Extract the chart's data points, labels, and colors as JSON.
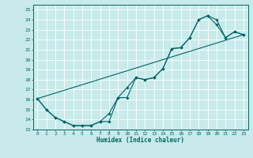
{
  "title": "",
  "xlabel": "Humidex (Indice chaleur)",
  "ylabel": "",
  "bg_color": "#c8eaea",
  "grid_color": "#ffffff",
  "line_color": "#006666",
  "marker": "D",
  "marker_size": 1.8,
  "xlim": [
    -0.5,
    23.5
  ],
  "ylim": [
    13,
    25.5
  ],
  "xticks": [
    0,
    1,
    2,
    3,
    4,
    5,
    6,
    7,
    8,
    9,
    10,
    11,
    12,
    13,
    14,
    15,
    16,
    17,
    18,
    19,
    20,
    21,
    22,
    23
  ],
  "yticks": [
    13,
    14,
    15,
    16,
    17,
    18,
    19,
    20,
    21,
    22,
    23,
    24,
    25
  ],
  "line1_x": [
    0,
    1,
    2,
    3,
    4,
    5,
    6,
    7,
    8,
    9,
    10,
    11,
    12,
    13,
    14,
    15,
    16,
    17,
    18,
    19,
    20,
    21,
    22,
    23
  ],
  "line1_y": [
    16.1,
    15.0,
    14.2,
    13.8,
    13.4,
    13.4,
    13.4,
    13.8,
    13.8,
    16.2,
    16.2,
    18.2,
    18.0,
    18.2,
    19.1,
    21.1,
    21.2,
    22.2,
    24.0,
    24.4,
    23.5,
    22.2,
    22.8,
    22.5
  ],
  "line2_x": [
    0,
    1,
    2,
    3,
    4,
    5,
    6,
    7,
    8,
    9,
    10,
    11,
    12,
    13,
    14,
    15,
    16,
    17,
    18,
    19,
    20,
    21,
    22,
    23
  ],
  "line2_y": [
    16.1,
    15.0,
    14.2,
    13.8,
    13.4,
    13.4,
    13.4,
    13.8,
    14.6,
    16.2,
    17.2,
    18.2,
    18.0,
    18.2,
    19.1,
    21.1,
    21.2,
    22.2,
    24.0,
    24.4,
    24.0,
    22.2,
    22.8,
    22.5
  ],
  "line3_x": [
    0,
    23
  ],
  "line3_y": [
    16.1,
    22.5
  ],
  "xlabel_fontsize": 5.5,
  "tick_fontsize": 4.5,
  "lw": 0.8
}
